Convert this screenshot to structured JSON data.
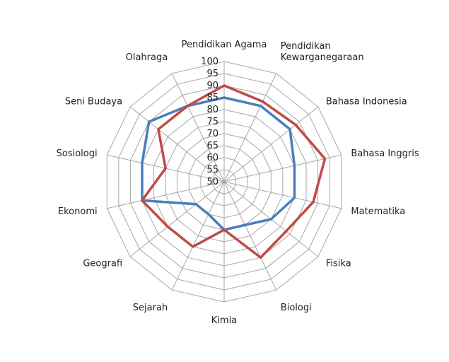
{
  "chart_data": {
    "type": "radar",
    "categories": [
      "Pendidikan Agama",
      "Pendidikan Kewarganegaraan",
      "Bahasa Indonesia",
      "Bahasa Inggris",
      "Matematika",
      "Fisika",
      "Biologi",
      "Kimia",
      "Sejarah",
      "Geografi",
      "Ekonomi",
      "Sosiologi",
      "Seni Budaya",
      "Olahraga"
    ],
    "category_label_lines": [
      [
        "Pendidikan Agama"
      ],
      [
        "Pendidikan",
        "Kewarganegaraan"
      ],
      [
        "Bahasa Indonesia"
      ],
      [
        "Bahasa Inggris"
      ],
      [
        "Matematika"
      ],
      [
        "Fisika"
      ],
      [
        "Biologi"
      ],
      [
        "Kimia"
      ],
      [
        "Sejarah"
      ],
      [
        "Geografi"
      ],
      [
        "Ekonomi"
      ],
      [
        "Sosiologi"
      ],
      [
        "Seni Budaya"
      ],
      [
        "Olahraga"
      ]
    ],
    "series": [
      {
        "color": "#4a7ebb",
        "values": [
          85,
          85,
          85,
          80,
          80,
          75,
          70,
          70,
          65,
          65,
          85,
          85,
          90,
          85
        ]
      },
      {
        "color": "#be4b48",
        "values": [
          90,
          87,
          88,
          93,
          88,
          83,
          85,
          70,
          80,
          80,
          85,
          75,
          85,
          85
        ]
      }
    ],
    "rlim": [
      50,
      100
    ],
    "ticks": [
      "50",
      "55",
      "60",
      "65",
      "70",
      "75",
      "80",
      "85",
      "90",
      "95",
      "100"
    ],
    "grid": true,
    "grid_color": "#a6a6a6"
  }
}
